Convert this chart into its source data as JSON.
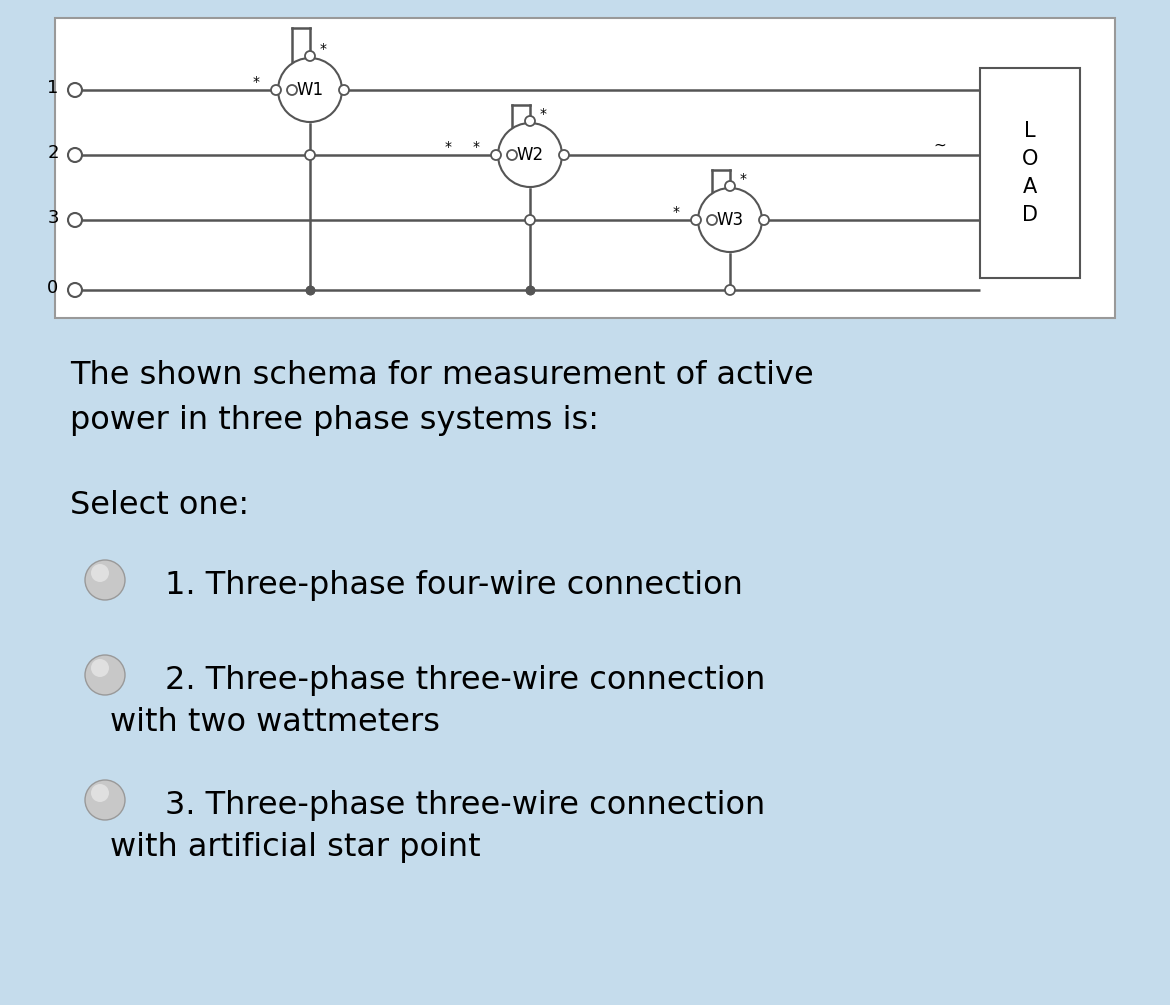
{
  "bg_color": "#c5dcec",
  "diagram_bg": "#ffffff",
  "diagram_border": "#888888",
  "line_color": "#555555",
  "load_bg": "#ffffff",
  "load_border": "#555555",
  "question_text": "The shown schema for measurement of active\npower in three phase systems is:",
  "select_text": "Select one:",
  "load_label": "L\nO\nA\nD",
  "wire_labels": [
    "1",
    "2",
    "3",
    "0"
  ],
  "wattmeter_labels": [
    "W1",
    "W2",
    "W3"
  ],
  "font_size_question": 23,
  "font_size_options": 23,
  "font_size_select": 23
}
